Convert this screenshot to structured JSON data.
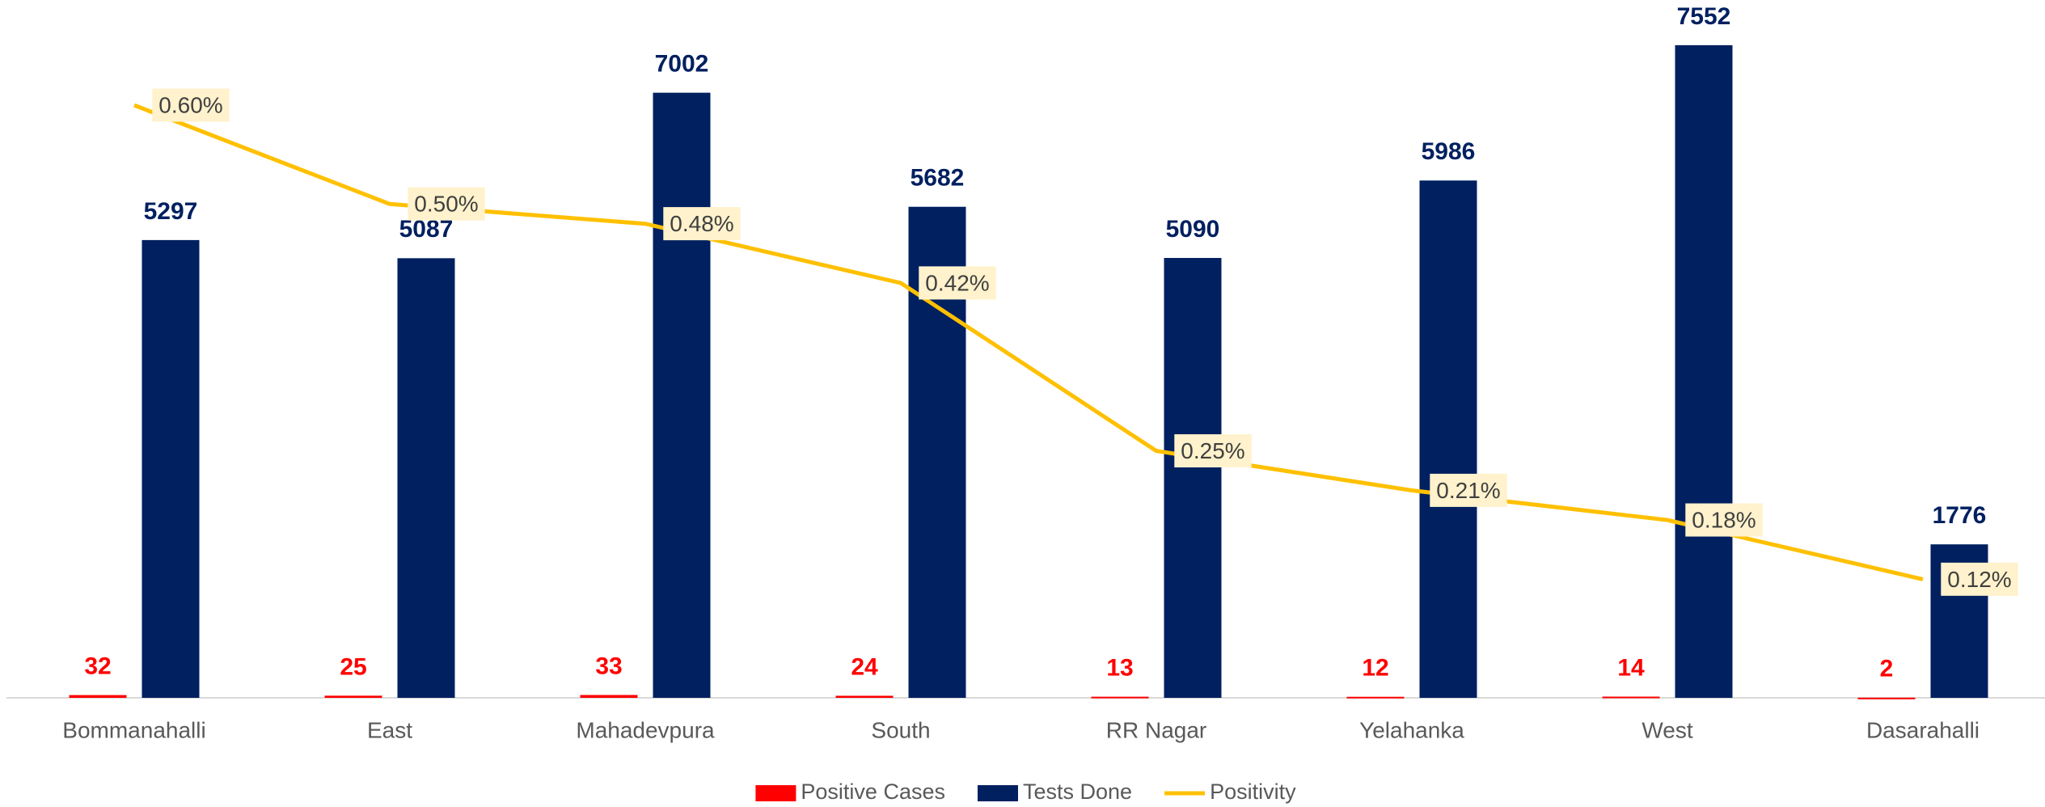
{
  "chart_data": {
    "type": "bar",
    "categories": [
      "Bommanahalli",
      "East",
      "Mahadevpura",
      "South",
      "RR Nagar",
      "Yelahanka",
      "West",
      "Dasarahalli"
    ],
    "series": [
      {
        "name": "Positive Cases",
        "color": "#ff0000",
        "values": [
          32,
          25,
          33,
          24,
          13,
          12,
          14,
          2
        ]
      },
      {
        "name": "Tests Done",
        "color": "#002060",
        "values": [
          5297,
          5087,
          7002,
          5682,
          5090,
          5986,
          7552,
          1776
        ]
      },
      {
        "name": "Positivity",
        "color": "#ffc000",
        "type": "line",
        "axis": "y2",
        "values": [
          0.6,
          0.5,
          0.48,
          0.42,
          0.25,
          0.21,
          0.18,
          0.12
        ],
        "value_labels": [
          "0.60%",
          "0.50%",
          "0.48%",
          "0.42%",
          "0.25%",
          "0.21%",
          "0.18%",
          "0.12%"
        ]
      }
    ],
    "ylim": [
      0,
      8000
    ],
    "y2lim": [
      0,
      0.7
    ],
    "legend": "bottom"
  }
}
